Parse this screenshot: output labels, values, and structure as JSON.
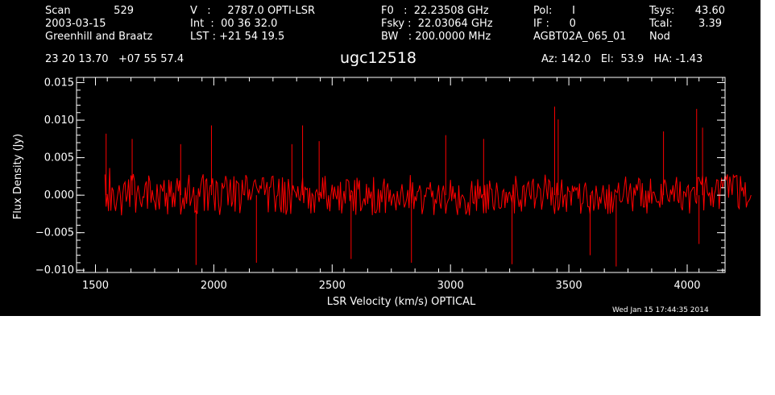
{
  "header": {
    "col1": {
      "scan_label": "Scan",
      "scan_value": "529",
      "date": "2003-03-15",
      "observer": "Greenhill and Braatz"
    },
    "col2": {
      "velocity": "V   :     2787.0 OPTI-LSR",
      "integration": "Int  :  00 36 32.0",
      "lst": "LST : +21 54 19.5"
    },
    "col3": {
      "f0": "F0   :  22.23508 GHz",
      "fsky": "Fsky :  22.03064 GHz",
      "bw": "BW   : 200.0000 MHz"
    },
    "col4": {
      "pol": "Pol:      I",
      "if": "IF :      0",
      "project": "AGBT02A_065_01"
    },
    "col5": {
      "tsys_label": "Tsys:",
      "tsys_value": "43.60",
      "tcal_label": "Tcal:",
      "tcal_value": "3.39",
      "mode": "Nod"
    },
    "coords": "23 20 13.70   +07 55 57.4",
    "source": "ugc12518",
    "pointing": "Az: 142.0   El:  53.9   HA: -1.43"
  },
  "timestamp": "Wed Jan 15 17:44:35 2014",
  "colors": {
    "background": "#000000",
    "foreground": "#ffffff",
    "trace": "#ff0000"
  },
  "chart_data": {
    "type": "line",
    "title": "",
    "xlabel": "LSR Velocity (km/s) OPTICAL",
    "ylabel": "Flux Density (Jy)",
    "xlim": [
      1420,
      4160
    ],
    "ylim": [
      -0.0103,
      0.0157
    ],
    "xticks": [
      1500,
      2000,
      2500,
      3000,
      3500,
      4000
    ],
    "yticks": [
      -0.01,
      -0.005,
      0.0,
      0.005,
      0.01,
      0.015
    ],
    "ytick_labels": [
      "−0.010",
      "−0.005",
      "0.000",
      "0.005",
      "0.010",
      "0.015"
    ],
    "grid": false,
    "series": [
      {
        "x_start": 1540,
        "x_end": 4070,
        "x_step": 5,
        "values": [
          0.00276,
          -0.00152,
          0.00014,
          -0.00212,
          0.00362,
          -0.00206,
          0.00102,
          0.00061,
          -0.00122,
          -0.00209,
          -0.00082,
          0.00027,
          0.00133,
          -4e-05,
          -0.00268,
          8e-05,
          0.00144,
          0.00175,
          -0.00087,
          -2e-05,
          0.00211,
          -0.00157,
          0.00264,
          0.00187,
          0.00281,
          0.00184,
          -0.00232,
          0.00027,
          0.00128,
          0.0001,
          -0.00095,
          -0.00158,
          -0.00021,
          -0.00029,
          0.00137,
          0.00183,
          -0.00181,
          0.00261,
          0.00181,
          -0.00101,
          0.00068,
          -0.00052,
          -0.00096,
          -0.00199,
          0.00148,
          -0.00055,
          -0.00188,
          0.00143,
          0.00097,
          0.00048,
          0.00201,
          -0.00151,
          0.00032,
          -0.00255,
          0.00206,
          -0.00022,
          0.00185,
          -0.00161,
          0.00035,
          -0.00155,
          0.00094,
          0.00227,
          0.00052,
          0.00197,
          -0.00257,
          -0.00148,
          -0.00033,
          -0.00183,
          0.00104,
          -0.00114,
          0.00127,
          0.00271,
          -0.00142,
          -0.00062,
          9e-05,
          0.00109,
          -0.00226,
          -0.00206,
          -0.0025,
          0.00093,
          -0.00022,
          0.00125,
          0.00222,
          0.00278,
          -0.00209,
          0.00188,
          0.00222,
          -0.00207,
          0.00016,
          0.00128,
          0.00127,
          0.00225,
          -0.00015,
          -0.00207,
          0.00186,
          0.00158,
          -0.00112,
          -0.00263,
          -0.00135,
          0.00165,
          0.00093,
          0.00124,
          0.00257,
          0.00191,
          -0.00134,
          0.00053,
          0.0021,
          -0.00151,
          -0.00087,
          0.00253,
          -0.00219,
          0.00189,
          0.0017,
          0.0015,
          -0.00239,
          -0.00104,
          0.00203,
          0.00011,
          4e-05,
          0.00268,
          0.00232,
          -0.00067,
          0.0008,
          -0.00065,
          -0.00011,
          0.00101,
          0.00182,
          0.00204,
          0.00111,
          0.00064,
          0.0003,
          0.0013,
          0.00083,
          0.00229,
          0.00232,
          3e-05,
          0.00085,
          0.00174,
          -0.00228,
          0.00106,
          0.00108,
          0.00245,
          0.00254,
          9e-05,
          -0.00221,
          -0.00013,
          -5e-05,
          0.00218,
          -0.00143,
          -0.00229,
          0.00238,
          -0.00239,
          0.00177,
          -0.0026,
          -0.00189,
          0.00216,
          0.00058,
          -0.00249,
          0.00042,
          0.00133,
          0.0006,
          0.00036,
          -0.00033,
          0.0012,
          -0.00051,
          -0.0007,
          0.00064,
          0.00234,
          -0.00106,
          0.00112,
          0.00073,
          0.0009,
          -0.00178,
          0.00097,
          -0.00242,
          0.00022,
          -7e-05,
          -0.00233,
          0.0004,
          0.00074,
          0.00014,
          -0.00091,
          0.00045,
          -0.00048,
          0.00236,
          -0.00052,
          0.00256,
          -9e-05,
          -0.00185,
          -1e-05,
          -0.00215,
          2e-05,
          0.00139,
          -0.00054,
          0.00113,
          -2e-05,
          -0.00057,
          0.00126,
          -0.00203,
          0.00178,
          -0.00243,
          -0.00083,
          0.00056,
          -0.0011,
          0.00208,
          0.00205,
          0.00181,
          -0.0008,
          0.00063,
          0.00044,
          -0.00212,
          0.00202,
          -0.00262,
          0.00232,
          0.00074,
          0.00199,
          -0.00212,
          -0.00171,
          -0.0009,
          -0.00043,
          -0.00134,
          0.00151,
          -0.00115,
          0.00103,
          -0.00044,
          0.00049,
          -0.00266,
          0.00242,
          -0.00229,
          -0.00236,
          -0.00189,
          0.00083,
          -0.00233,
          0.00065,
          -0.00094,
          0.0013,
          0.00221,
          -0.00237,
          0.00099,
          0.00158,
          -0.0009,
          0.00072,
          -0.00139,
          -0.00036,
          0.00021,
          -0.00091,
          -0.00202,
          0.00055,
          -0.00086,
          -0.00134,
          0.00033,
          0.00146,
          -0.00015,
          -0.00163,
          -0.00115,
          -0.00048,
          0.0007,
          -0.00173,
          0.00269,
          -0.00109,
          0.00171,
          -0.00184,
          -0.00014,
          -0.00078,
          0.00049,
          0.00055,
          0.00133,
          0.00052,
          -0.00252,
          -0.00165,
          -3e-05,
          -0.00018,
          0.00097,
          0.00097,
          0.00079,
          0.00173,
          -0.00027,
          0.00061,
          -0.00264,
          -0.0005,
          -0.00113,
          0.00013,
          0.00134,
          -0.00101,
          -0.00178,
          0.00047,
          0.00126,
          -8e-05,
          -0.00246,
          -0.00113,
          -0.00067,
          -0.00041,
          0.00204,
          -0.00079,
          0.00121,
          -0.00049,
          0.00036,
          -0.00166,
          -0.00264,
          0.0013,
          -0.00176,
          -0.00027,
          3e-05,
          -0.00024,
          -0.00069,
          -0.00255,
          -0.00215,
          -0.00092,
          -0.00269,
          0.00031,
          0.00188,
          -0.00099,
          -0.00112,
          0.00126,
          -0.00209,
          0.00212,
          -0.00049,
          0.00123,
          -0.00039,
          0.00012,
          -0.00241,
          0.00136,
          -0.00239,
          0.00148,
          -0.00191,
          0.00195,
          0.00085,
          0.00075,
          -0.00152,
          -0.00202,
          -0.00019,
          0.00167,
          0.00026,
          -0.00165,
          -0.00178,
          -0.00159,
          0.00047,
          0.00075,
          -0.00171,
          0.00044,
          -0.00104,
          0.00023,
          0.00041,
          -0.0003,
          -0.00101,
          0.00145,
          -0.00242,
          0.00257,
          0.00127,
          -0.00037,
          -0.00156,
          -0.00057,
          -0.00218,
          0.00112,
          0.00131,
          -0.00153,
          0.00038,
          0.00146,
          0.00178,
          6e-05,
          -0.00055,
          0.00174,
          0.00218,
          -0.00176,
          -0.00048,
          -0.00018,
          0.00157,
          0.00101,
          0.00082,
          -0.00193,
          -0.0007,
          0.00075,
          0.00273,
          0.00092,
          -0.00054,
          0.00204,
          0.00179,
          -0.00136,
          0.00106,
          -0.00119,
          -0.00249,
          -0.00037,
          0.00166,
          -0.00205,
          -0.00157,
          0.00028,
          0.00209,
          -0.00158,
          -0.00016,
          7e-05,
          -0.00223,
          0.00116,
          0.00054,
          0.00048,
          -0.00138,
          0.00127,
          0.00044,
          0.00107,
          0.00067,
          0.00106,
          -0.00049,
          0.00156,
          -0.00247,
          -0.00116,
          -0.00104,
          0.00107,
          0.00168,
          0.00046,
          -0.00152,
          -0.00154,
          -0.00253,
          0.00031,
          0.00055,
          -0.00206,
          -0.00119,
          0.00126,
          -0.00011,
          -0.00192,
          -0.00021,
          -0.00112,
          0.00023,
          0.00133,
          -0.00063,
          -0.00185,
          0.00081,
          -0.00249,
          0.00143,
          -0.00246,
          0.0005,
          -0.00229,
          -0.00073,
          0.00072,
          0.00048,
          0.00034,
          0.00168,
          -0.00068,
          -0.00092,
          -0.00081,
          -6e-05,
          0.0012,
          0.00249,
          -0.00017,
          -0.00117,
          0.00052,
          0.00157,
          -0.00052,
          -0.00215,
          0.00102,
          -5e-05,
          0.00145,
          0.00062,
          0.00225,
          0.00206,
          -0.00148,
          0.00161,
          -0.00159,
          -0.00158,
          0.00062,
          -0.00242,
          0.0006,
          -0.00102,
          0.00219,
          -0.00113,
          0.00042,
          0.00042,
          -0.00017,
          -0.00083,
          -0.00095,
          -0.00082,
          -0.00165,
          0.00152,
          -0.00127,
          0.00107,
          0.00209,
          0.00154,
          0.00015,
          -0.00068,
          -0.00086,
          0.00073,
          6e-05,
          0.00133,
          -0.00082,
          0.00112,
          0.00243,
          -0.00059,
          -0.00105,
          0.00181,
          -0.00157,
          -0.00201,
          0.00048,
          0.00036,
          -0.00025,
          0.00105,
          0.00131,
          -0.00243,
          0.00043,
          0.00071,
          0.00102,
          0.00105,
          -0.00079,
          -0.00112,
          0.00236,
          0.00235,
          0.00178,
          0.00138,
          0.00261,
          -0.00203,
          0.00154,
          0.00245,
          0.00039,
          -5e-05,
          0.00037,
          -0.0014,
          0.00108,
          -0.0016,
          0.00017,
          0.00072,
          0.00207,
          0.00198,
          -0.00183,
          0.00071,
          0.00233,
          0.00089,
          0.00174,
          0.00265,
          0.0021,
          0.00276,
          -0.00033,
          0.00249,
          0.00153,
          4e-05,
          0.00266,
          0.00237,
          0.00257,
          0.00262,
          -0.00153,
          -0.00179,
          0.00255,
          0.00053,
          0.00106,
          -0.00018,
          0.00172,
          -0.00163,
          -0.00095,
          -0.00075,
          -0.00051,
          1e-05
        ]
      }
    ],
    "spikes": [
      {
        "x": 1545,
        "y": 0.0082
      },
      {
        "x": 1655,
        "y": 0.0075
      },
      {
        "x": 1860,
        "y": 0.0068
      },
      {
        "x": 1925,
        "y": -0.0093
      },
      {
        "x": 1990,
        "y": 0.0093
      },
      {
        "x": 2180,
        "y": -0.009
      },
      {
        "x": 2330,
        "y": 0.0068
      },
      {
        "x": 2375,
        "y": 0.0093
      },
      {
        "x": 2445,
        "y": 0.0072
      },
      {
        "x": 2580,
        "y": -0.0085
      },
      {
        "x": 2835,
        "y": -0.009
      },
      {
        "x": 2980,
        "y": 0.008
      },
      {
        "x": 3140,
        "y": 0.0075
      },
      {
        "x": 3260,
        "y": -0.0092
      },
      {
        "x": 3440,
        "y": 0.0118
      },
      {
        "x": 3455,
        "y": 0.0101
      },
      {
        "x": 3590,
        "y": -0.008
      },
      {
        "x": 3700,
        "y": -0.0095
      },
      {
        "x": 3900,
        "y": 0.0085
      },
      {
        "x": 4040,
        "y": 0.0115
      },
      {
        "x": 4050,
        "y": -0.0065
      },
      {
        "x": 4065,
        "y": 0.009
      }
    ]
  }
}
